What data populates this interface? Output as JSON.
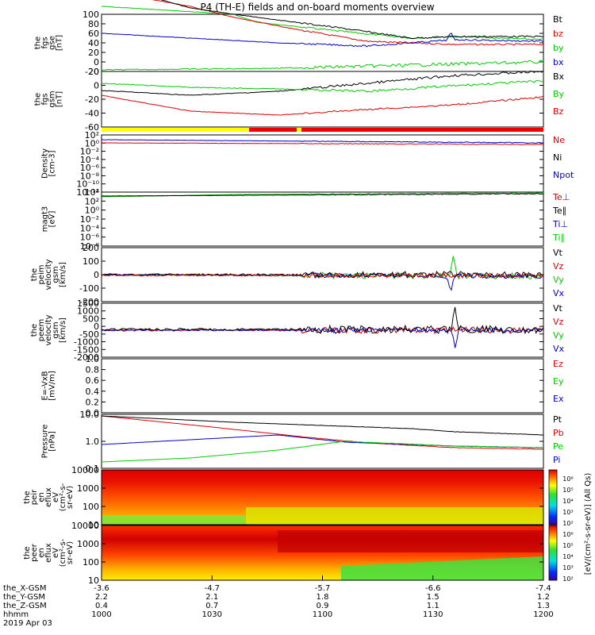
{
  "title": "P4 (TH-E) fields and on-board moments overview",
  "colors": {
    "black": "#000000",
    "red": "#dd0000",
    "green": "#00cc00",
    "blue": "#0000cc",
    "yellow": "#ffff00"
  },
  "panels": [
    {
      "id": "fgs_gse",
      "ylabel": [
        "the",
        "fgs",
        "gse",
        "[nT]"
      ],
      "yticks": [
        "100",
        "80",
        "60",
        "40",
        "20",
        "0",
        "-20"
      ],
      "legend": [
        {
          "t": "Bt",
          "c": "black"
        },
        {
          "t": "bz",
          "c": "red"
        },
        {
          "t": "by",
          "c": "green"
        },
        {
          "t": "bx",
          "c": "blue"
        }
      ]
    },
    {
      "id": "fgs_gsm",
      "ylabel": [
        "the",
        "fgs",
        "gsm",
        "[nT]"
      ],
      "yticks": [
        "20",
        "0",
        "-20",
        "-40",
        "-60"
      ],
      "legend": [
        {
          "t": "Bx",
          "c": "black"
        },
        {
          "t": "By",
          "c": "green"
        },
        {
          "t": "Bz",
          "c": "red"
        }
      ]
    },
    {
      "id": "density",
      "ylabel": [
        "Density",
        "[cm-3]"
      ],
      "yticks": [
        "10²",
        "10⁰",
        "10⁻²",
        "10⁻⁴",
        "10⁻⁶",
        "10⁻⁸",
        "10⁻¹⁰",
        "10⁻¹²"
      ],
      "legend": [
        {
          "t": "Ne",
          "c": "red"
        },
        {
          "t": "Ni",
          "c": "black"
        },
        {
          "t": "Npot",
          "c": "blue"
        }
      ]
    },
    {
      "id": "temp",
      "ylabel": [
        "magt3",
        "[eV]"
      ],
      "yticks": [
        "10⁴",
        "10²",
        "10⁰",
        "10⁻²",
        "10⁻⁴",
        "10⁻⁶",
        "10⁻⁸"
      ],
      "legend": [
        {
          "t": "Te⊥",
          "c": "red"
        },
        {
          "t": "Te∥",
          "c": "black"
        },
        {
          "t": "Ti⊥",
          "c": "blue"
        },
        {
          "t": "Ti∥",
          "c": "green"
        }
      ]
    },
    {
      "id": "peim_vel",
      "ylabel": [
        "the",
        "peim",
        "velocity",
        "gsm",
        "[km/s]"
      ],
      "yticks": [
        "200",
        "100",
        "0",
        "-100",
        "-200"
      ],
      "legend": [
        {
          "t": "Vt",
          "c": "black"
        },
        {
          "t": "Vz",
          "c": "red"
        },
        {
          "t": "Vy",
          "c": "green"
        },
        {
          "t": "Vx",
          "c": "blue"
        }
      ]
    },
    {
      "id": "peem_vel",
      "ylabel": [
        "the",
        "peem",
        "velocity",
        "gsm",
        "[km/s]"
      ],
      "yticks": [
        "1500",
        "1000",
        "500",
        "0",
        "-500",
        "-1000",
        "-1500",
        "-2000"
      ],
      "legend": [
        {
          "t": "Vt",
          "c": "black"
        },
        {
          "t": "Vz",
          "c": "red"
        },
        {
          "t": "Vy",
          "c": "green"
        },
        {
          "t": "Vx",
          "c": "blue"
        }
      ]
    },
    {
      "id": "efield",
      "ylabel": [
        "E=-VxB",
        "[mV/m]"
      ],
      "yticks": [
        "1.0",
        "0.8",
        "0.6",
        "0.4",
        "0.2",
        "0.0"
      ],
      "legend": [
        {
          "t": "Ez",
          "c": "red"
        },
        {
          "t": "Ey",
          "c": "green"
        },
        {
          "t": "Ex",
          "c": "blue"
        }
      ]
    },
    {
      "id": "pressure",
      "ylabel": [
        "Pressure",
        "[nPa]"
      ],
      "yticks": [
        "10.0",
        "1.0",
        "0.1"
      ],
      "legend": [
        {
          "t": "Pt",
          "c": "black"
        },
        {
          "t": "Pb",
          "c": "red"
        },
        {
          "t": "Pe",
          "c": "green"
        },
        {
          "t": "Pi",
          "c": "blue"
        }
      ]
    },
    {
      "id": "peir",
      "ylabel": [
        "the",
        "peir",
        "en",
        "eflux",
        "eV",
        "(cm²-s-",
        "sr-eV)"
      ],
      "yticks": [
        "10000",
        "1000",
        "100",
        "10"
      ]
    },
    {
      "id": "peer",
      "ylabel": [
        "the",
        "peer",
        "en",
        "eflux",
        "eV",
        "(cm²-s-",
        "sr-eV)"
      ],
      "yticks": [
        "10000",
        "1000",
        "100",
        "10"
      ]
    }
  ],
  "colorbar": {
    "label": "[eV/(cm²-s-sr-eV)] (All Qs)",
    "ticks_top": [
      "10⁶",
      "10⁵",
      "10⁴",
      "10³",
      "10²"
    ],
    "ticks_bot": [
      "10⁶",
      "10⁵",
      "10⁴",
      "10³",
      "10²"
    ]
  },
  "xaxis": {
    "rows": [
      {
        "label": "the_X-GSM",
        "vals": [
          "-3.6",
          "-4.7",
          "-5.7",
          "-6.6",
          "-7.4"
        ]
      },
      {
        "label": "the_Y-GSM",
        "vals": [
          "2.2",
          "2.1",
          "1.8",
          "1.5",
          "1.2"
        ]
      },
      {
        "label": "the_Z-GSM",
        "vals": [
          "0.4",
          "0.7",
          "0.9",
          "1.1",
          "1.3"
        ]
      },
      {
        "label": "hhmm",
        "vals": [
          "1000",
          "1030",
          "1100",
          "1130",
          "1200"
        ]
      }
    ],
    "date": "2019 Apr 03"
  },
  "chart_data": [
    {
      "type": "line",
      "title": "P4 (TH-E) fields and on-board moments overview",
      "ylabel": "the fgs gse [nT]",
      "ylim": [
        -20,
        100
      ],
      "x": [
        "1000",
        "1030",
        "1100",
        "1130",
        "1200"
      ],
      "series": [
        {
          "name": "Bt",
          "values": [
            150,
            80,
            60,
            40,
            42
          ]
        },
        {
          "name": "bz",
          "values": [
            145,
            70,
            45,
            20,
            18
          ]
        },
        {
          "name": "by",
          "values": [
            -18,
            -12,
            -8,
            -2,
            2
          ]
        },
        {
          "name": "bx",
          "values": [
            57,
            45,
            35,
            38,
            37
          ]
        }
      ]
    },
    {
      "type": "line",
      "ylabel": "the fgs gsm [nT]",
      "ylim": [
        -60,
        20
      ],
      "x": [
        "1000",
        "1030",
        "1100",
        "1130",
        "1200"
      ],
      "series": [
        {
          "name": "Bx",
          "values": [
            -12,
            -15,
            -8,
            0,
            15
          ]
        },
        {
          "name": "By",
          "values": [
            0,
            -2,
            -5,
            0,
            8
          ]
        },
        {
          "name": "Bz",
          "values": [
            -25,
            -48,
            -50,
            -30,
            -20
          ]
        }
      ]
    },
    {
      "type": "line",
      "ylabel": "Density [cm-3]",
      "ylim": [
        "1e-12",
        "1e2"
      ],
      "log": true,
      "x": [
        "1000",
        "1030",
        "1100",
        "1130",
        "1200"
      ],
      "series": [
        {
          "name": "Ne",
          "values": [
            5,
            3,
            2,
            1,
            1
          ]
        },
        {
          "name": "Ni",
          "values": [
            6,
            4,
            2,
            1,
            1
          ]
        },
        {
          "name": "Npot",
          "values": [
            8,
            6,
            4,
            3,
            3
          ]
        }
      ]
    },
    {
      "type": "line",
      "ylabel": "magt3 [eV]",
      "ylim": [
        "1e-8",
        "1e4"
      ],
      "log": true,
      "x": [
        "1000",
        "1030",
        "1100",
        "1130",
        "1200"
      ],
      "series": [
        {
          "name": "Te⊥",
          "values": [
            1000,
            2000,
            3000,
            4000,
            4000
          ]
        },
        {
          "name": "Ti∥",
          "values": [
            1500,
            3000,
            4000,
            5000,
            5000
          ]
        }
      ]
    },
    {
      "type": "line",
      "ylabel": "the peim velocity gsm [km/s]",
      "ylim": [
        -200,
        200
      ],
      "x": [
        "1000",
        "1030",
        "1100",
        "1130",
        "1200"
      ],
      "series": [
        {
          "name": "Vt",
          "values": [
            5,
            5,
            10,
            180,
            20
          ]
        },
        {
          "name": "Vx",
          "values": [
            0,
            0,
            -5,
            -190,
            -5
          ]
        }
      ]
    },
    {
      "type": "line",
      "ylabel": "the peem velocity gsm [km/s]",
      "ylim": [
        -2000,
        1500
      ],
      "x": [
        "1000",
        "1030",
        "1100",
        "1130",
        "1200"
      ],
      "series": [
        {
          "name": "Vt",
          "values": [
            20,
            30,
            100,
            1500,
            150
          ]
        },
        {
          "name": "Vx",
          "values": [
            0,
            0,
            -50,
            -1400,
            -50
          ]
        }
      ]
    },
    {
      "type": "line",
      "ylabel": "E=-VxB [mV/m]",
      "ylim": [
        0,
        1
      ],
      "x": [],
      "series": []
    },
    {
      "type": "line",
      "ylabel": "Pressure [nPa]",
      "ylim": [
        0.1,
        10
      ],
      "log": true,
      "x": [
        "1000",
        "1030",
        "1100",
        "1130",
        "1200"
      ],
      "series": [
        {
          "name": "Pt",
          "values": [
            10,
            5,
            2.5,
            2,
            2
          ]
        },
        {
          "name": "Pb",
          "values": [
            10,
            4,
            1.2,
            0.7,
            0.6
          ]
        },
        {
          "name": "Pe",
          "values": [
            0.15,
            0.3,
            1,
            0.8,
            0.6
          ]
        },
        {
          "name": "Pi",
          "values": [
            0.5,
            2,
            1.2,
            0.7,
            0.7
          ]
        }
      ]
    },
    {
      "type": "heatmap",
      "ylabel": "the peir en eflux eV/(cm²-s-sr-eV)",
      "ylim": [
        5,
        25000
      ],
      "log": true,
      "x": [
        "1000",
        "1030",
        "1100",
        "1130",
        "1200"
      ]
    },
    {
      "type": "heatmap",
      "ylabel": "the peer en eflux eV/(cm²-s-sr-eV)",
      "ylim": [
        5,
        25000
      ],
      "log": true,
      "x": [
        "1000",
        "1030",
        "1100",
        "1130",
        "1200"
      ]
    }
  ]
}
